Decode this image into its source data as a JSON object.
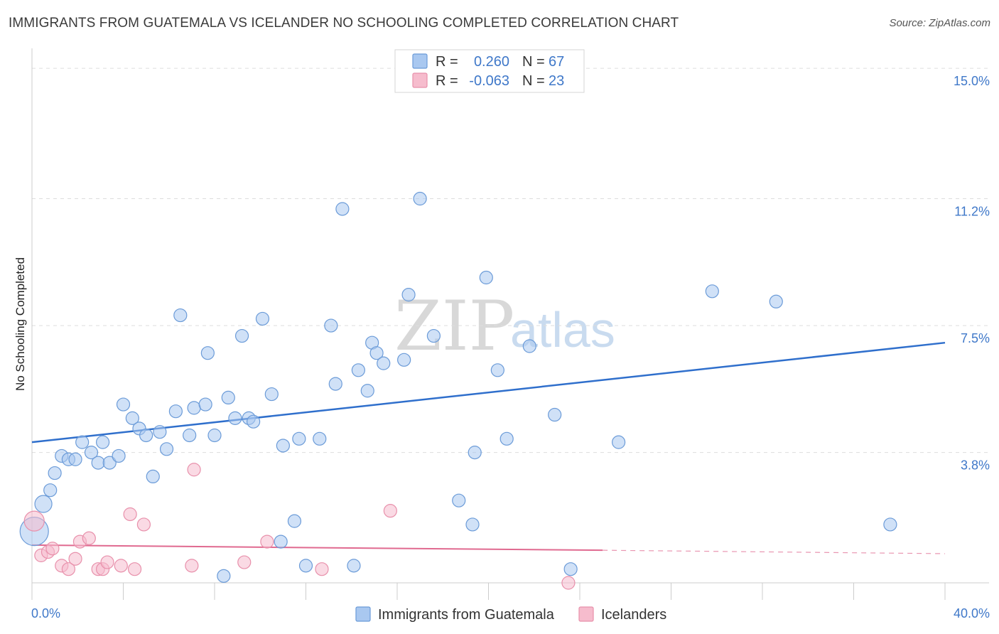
{
  "title": "IMMIGRANTS FROM GUATEMALA VS ICELANDER NO SCHOOLING COMPLETED CORRELATION CHART",
  "source": "Source: ZipAtlas.com",
  "watermark": {
    "zip": "ZIP",
    "atlas": "atlas"
  },
  "legend_box": {
    "rows": [
      {
        "r_label": "R =",
        "r_value": "0.260",
        "n_label": "N =",
        "n_value": "67"
      },
      {
        "r_label": "R =",
        "r_value": "-0.063",
        "n_label": "N =",
        "n_value": "23"
      }
    ]
  },
  "colors": {
    "blue_fill": "#a9c8f0",
    "blue_stroke": "#6b9bd8",
    "blue_line": "#2f6fcc",
    "pink_fill": "#f6bccd",
    "pink_stroke": "#e890ab",
    "pink_line": "#e06a90",
    "grid": "#dddddd",
    "tick": "#3f78c9"
  },
  "chart_data": {
    "type": "scatter",
    "title": "IMMIGRANTS FROM GUATEMALA VS ICELANDER NO SCHOOLING COMPLETED CORRELATION CHART",
    "xlabel": "",
    "ylabel": "No Schooling Completed",
    "xlim": [
      0,
      40
    ],
    "ylim": [
      0,
      15.5
    ],
    "x_tick_labels": [
      "0.0%",
      "40.0%"
    ],
    "y_ticks": [
      3.8,
      7.5,
      11.2,
      15.0
    ],
    "y_tick_labels": [
      "3.8%",
      "7.5%",
      "11.2%",
      "15.0%"
    ],
    "grid": true,
    "legend": "bottom-center",
    "series": [
      {
        "name": "Immigrants from Guatemala",
        "color": "#a9c8f0",
        "points": [
          [
            0.1,
            1.5,
            20
          ],
          [
            0.5,
            2.3,
            12
          ],
          [
            0.8,
            2.7,
            9
          ],
          [
            1.0,
            3.2,
            9
          ],
          [
            1.3,
            3.7,
            9
          ],
          [
            1.6,
            3.6,
            9
          ],
          [
            1.9,
            3.6,
            9
          ],
          [
            2.2,
            4.1,
            9
          ],
          [
            2.6,
            3.8,
            9
          ],
          [
            2.9,
            3.5,
            9
          ],
          [
            3.1,
            4.1,
            9
          ],
          [
            3.4,
            3.5,
            9
          ],
          [
            3.8,
            3.7,
            9
          ],
          [
            4.0,
            5.2,
            9
          ],
          [
            4.4,
            4.8,
            9
          ],
          [
            4.7,
            4.5,
            9
          ],
          [
            5.0,
            4.3,
            9
          ],
          [
            5.3,
            3.1,
            9
          ],
          [
            5.6,
            4.4,
            9
          ],
          [
            5.9,
            3.9,
            9
          ],
          [
            6.3,
            5.0,
            9
          ],
          [
            6.5,
            7.8,
            9
          ],
          [
            6.9,
            4.3,
            9
          ],
          [
            7.1,
            5.1,
            9
          ],
          [
            7.6,
            5.2,
            9
          ],
          [
            7.7,
            6.7,
            9
          ],
          [
            8.0,
            4.3,
            9
          ],
          [
            8.4,
            0.2,
            9
          ],
          [
            8.6,
            5.4,
            9
          ],
          [
            8.9,
            4.8,
            9
          ],
          [
            9.2,
            7.2,
            9
          ],
          [
            9.5,
            4.8,
            9
          ],
          [
            9.7,
            4.7,
            9
          ],
          [
            10.1,
            7.7,
            9
          ],
          [
            10.5,
            5.5,
            9
          ],
          [
            10.9,
            1.2,
            9
          ],
          [
            11.0,
            4.0,
            9
          ],
          [
            11.5,
            1.8,
            9
          ],
          [
            11.7,
            4.2,
            9
          ],
          [
            12.0,
            0.5,
            9
          ],
          [
            12.6,
            4.2,
            9
          ],
          [
            13.1,
            7.5,
            9
          ],
          [
            13.3,
            5.8,
            9
          ],
          [
            13.6,
            10.9,
            9
          ],
          [
            14.1,
            0.5,
            9
          ],
          [
            14.3,
            6.2,
            9
          ],
          [
            14.7,
            5.6,
            9
          ],
          [
            14.9,
            7.0,
            9
          ],
          [
            15.1,
            6.7,
            9
          ],
          [
            15.4,
            6.4,
            9
          ],
          [
            16.3,
            6.5,
            9
          ],
          [
            16.5,
            8.4,
            9
          ],
          [
            17.0,
            11.2,
            9
          ],
          [
            17.6,
            7.2,
            9
          ],
          [
            18.7,
            2.4,
            9
          ],
          [
            19.3,
            1.7,
            9
          ],
          [
            19.4,
            3.8,
            9
          ],
          [
            19.9,
            8.9,
            9
          ],
          [
            20.4,
            6.2,
            9
          ],
          [
            20.8,
            4.2,
            9
          ],
          [
            21.8,
            6.9,
            9
          ],
          [
            22.9,
            4.9,
            9
          ],
          [
            23.6,
            0.4,
            9
          ],
          [
            25.7,
            4.1,
            9
          ],
          [
            29.8,
            8.5,
            9
          ],
          [
            32.6,
            8.2,
            9
          ],
          [
            37.6,
            1.7,
            9
          ]
        ]
      },
      {
        "name": "Icelanders",
        "color": "#f6bccd",
        "points": [
          [
            0.1,
            1.8,
            14
          ],
          [
            0.4,
            0.8,
            9
          ],
          [
            0.7,
            0.9,
            9
          ],
          [
            0.9,
            1.0,
            9
          ],
          [
            1.3,
            0.5,
            9
          ],
          [
            1.6,
            0.4,
            9
          ],
          [
            1.9,
            0.7,
            9
          ],
          [
            2.1,
            1.2,
            9
          ],
          [
            2.5,
            1.3,
            9
          ],
          [
            2.9,
            0.4,
            9
          ],
          [
            3.1,
            0.4,
            9
          ],
          [
            3.3,
            0.6,
            9
          ],
          [
            3.9,
            0.5,
            9
          ],
          [
            4.3,
            2.0,
            9
          ],
          [
            4.5,
            0.4,
            9
          ],
          [
            4.9,
            1.7,
            9
          ],
          [
            7.0,
            0.5,
            9
          ],
          [
            7.1,
            3.3,
            9
          ],
          [
            9.3,
            0.6,
            9
          ],
          [
            10.3,
            1.2,
            9
          ],
          [
            12.7,
            0.4,
            9
          ],
          [
            15.7,
            2.1,
            9
          ],
          [
            23.5,
            0.0,
            9
          ]
        ]
      }
    ],
    "trendlines": [
      {
        "series": "Immigrants from Guatemala",
        "x": [
          0,
          40
        ],
        "y": [
          4.1,
          7.0
        ],
        "style": "solid"
      },
      {
        "series": "Icelanders",
        "x": [
          0,
          25
        ],
        "y": [
          1.1,
          0.95
        ],
        "style": "solid"
      },
      {
        "series": "Icelanders",
        "x": [
          25,
          40
        ],
        "y": [
          0.95,
          0.85
        ],
        "style": "dashed"
      }
    ]
  }
}
